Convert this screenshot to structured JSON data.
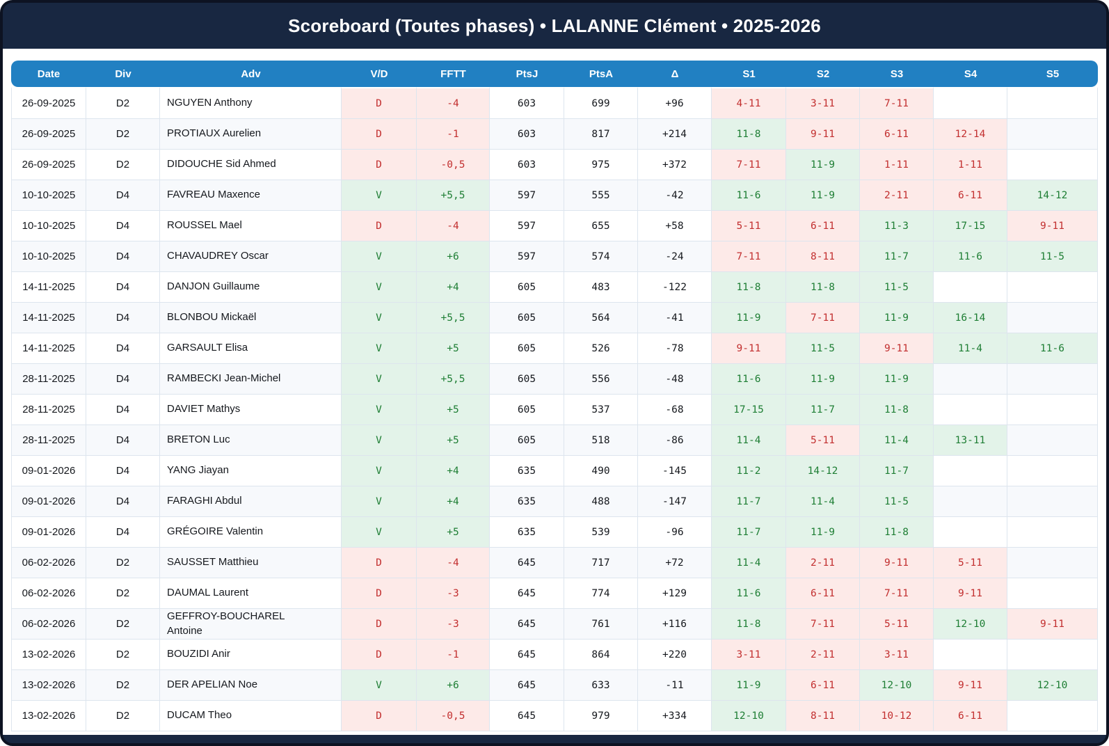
{
  "header": {
    "title": "Scoreboard (Toutes phases) • LALANNE Clément • 2025-2026"
  },
  "colors": {
    "header_navy": "#182741",
    "column_header_blue": "#2180c2",
    "win_text": "#1e7e34",
    "win_bg": "#e3f3e9",
    "loss_text": "#c22f2f",
    "loss_bg": "#fdeae8"
  },
  "table": {
    "columns": [
      "Date",
      "Div",
      "Adv",
      "V/D",
      "FFTT",
      "PtsJ",
      "PtsA",
      "Δ",
      "S1",
      "S2",
      "S3",
      "S4",
      "S5"
    ],
    "rows": [
      {
        "date": "26-09-2025",
        "div": "D2",
        "adv": "NGUYEN Anthony",
        "vd": "D",
        "result": "loss",
        "fftt": "-4",
        "ptsj": "603",
        "ptsa": "699",
        "delta": "+96",
        "sets": [
          {
            "score": "4-11",
            "result": "loss"
          },
          {
            "score": "3-11",
            "result": "loss"
          },
          {
            "score": "7-11",
            "result": "loss"
          },
          {
            "score": "",
            "result": ""
          },
          {
            "score": "",
            "result": ""
          }
        ]
      },
      {
        "date": "26-09-2025",
        "div": "D2",
        "adv": "PROTIAUX Aurelien",
        "vd": "D",
        "result": "loss",
        "fftt": "-1",
        "ptsj": "603",
        "ptsa": "817",
        "delta": "+214",
        "sets": [
          {
            "score": "11-8",
            "result": "win"
          },
          {
            "score": "9-11",
            "result": "loss"
          },
          {
            "score": "6-11",
            "result": "loss"
          },
          {
            "score": "12-14",
            "result": "loss"
          },
          {
            "score": "",
            "result": ""
          }
        ]
      },
      {
        "date": "26-09-2025",
        "div": "D2",
        "adv": "DIDOUCHE Sid Ahmed",
        "vd": "D",
        "result": "loss",
        "fftt": "-0,5",
        "ptsj": "603",
        "ptsa": "975",
        "delta": "+372",
        "sets": [
          {
            "score": "7-11",
            "result": "loss"
          },
          {
            "score": "11-9",
            "result": "win"
          },
          {
            "score": "1-11",
            "result": "loss"
          },
          {
            "score": "1-11",
            "result": "loss"
          },
          {
            "score": "",
            "result": ""
          }
        ]
      },
      {
        "date": "10-10-2025",
        "div": "D4",
        "adv": "FAVREAU Maxence",
        "vd": "V",
        "result": "win",
        "fftt": "+5,5",
        "ptsj": "597",
        "ptsa": "555",
        "delta": "-42",
        "sets": [
          {
            "score": "11-6",
            "result": "win"
          },
          {
            "score": "11-9",
            "result": "win"
          },
          {
            "score": "2-11",
            "result": "loss"
          },
          {
            "score": "6-11",
            "result": "loss"
          },
          {
            "score": "14-12",
            "result": "win"
          }
        ]
      },
      {
        "date": "10-10-2025",
        "div": "D4",
        "adv": "ROUSSEL Mael",
        "vd": "D",
        "result": "loss",
        "fftt": "-4",
        "ptsj": "597",
        "ptsa": "655",
        "delta": "+58",
        "sets": [
          {
            "score": "5-11",
            "result": "loss"
          },
          {
            "score": "6-11",
            "result": "loss"
          },
          {
            "score": "11-3",
            "result": "win"
          },
          {
            "score": "17-15",
            "result": "win"
          },
          {
            "score": "9-11",
            "result": "loss"
          }
        ]
      },
      {
        "date": "10-10-2025",
        "div": "D4",
        "adv": "CHAVAUDREY Oscar",
        "vd": "V",
        "result": "win",
        "fftt": "+6",
        "ptsj": "597",
        "ptsa": "574",
        "delta": "-24",
        "sets": [
          {
            "score": "7-11",
            "result": "loss"
          },
          {
            "score": "8-11",
            "result": "loss"
          },
          {
            "score": "11-7",
            "result": "win"
          },
          {
            "score": "11-6",
            "result": "win"
          },
          {
            "score": "11-5",
            "result": "win"
          }
        ]
      },
      {
        "date": "14-11-2025",
        "div": "D4",
        "adv": "DANJON Guillaume",
        "vd": "V",
        "result": "win",
        "fftt": "+4",
        "ptsj": "605",
        "ptsa": "483",
        "delta": "-122",
        "sets": [
          {
            "score": "11-8",
            "result": "win"
          },
          {
            "score": "11-8",
            "result": "win"
          },
          {
            "score": "11-5",
            "result": "win"
          },
          {
            "score": "",
            "result": ""
          },
          {
            "score": "",
            "result": ""
          }
        ]
      },
      {
        "date": "14-11-2025",
        "div": "D4",
        "adv": "BLONBOU Mickaël",
        "vd": "V",
        "result": "win",
        "fftt": "+5,5",
        "ptsj": "605",
        "ptsa": "564",
        "delta": "-41",
        "sets": [
          {
            "score": "11-9",
            "result": "win"
          },
          {
            "score": "7-11",
            "result": "loss"
          },
          {
            "score": "11-9",
            "result": "win"
          },
          {
            "score": "16-14",
            "result": "win"
          },
          {
            "score": "",
            "result": ""
          }
        ]
      },
      {
        "date": "14-11-2025",
        "div": "D4",
        "adv": "GARSAULT Elisa",
        "vd": "V",
        "result": "win",
        "fftt": "+5",
        "ptsj": "605",
        "ptsa": "526",
        "delta": "-78",
        "sets": [
          {
            "score": "9-11",
            "result": "loss"
          },
          {
            "score": "11-5",
            "result": "win"
          },
          {
            "score": "9-11",
            "result": "loss"
          },
          {
            "score": "11-4",
            "result": "win"
          },
          {
            "score": "11-6",
            "result": "win"
          }
        ]
      },
      {
        "date": "28-11-2025",
        "div": "D4",
        "adv": "RAMBECKI Jean-Michel",
        "vd": "V",
        "result": "win",
        "fftt": "+5,5",
        "ptsj": "605",
        "ptsa": "556",
        "delta": "-48",
        "sets": [
          {
            "score": "11-6",
            "result": "win"
          },
          {
            "score": "11-9",
            "result": "win"
          },
          {
            "score": "11-9",
            "result": "win"
          },
          {
            "score": "",
            "result": ""
          },
          {
            "score": "",
            "result": ""
          }
        ]
      },
      {
        "date": "28-11-2025",
        "div": "D4",
        "adv": "DAVIET Mathys",
        "vd": "V",
        "result": "win",
        "fftt": "+5",
        "ptsj": "605",
        "ptsa": "537",
        "delta": "-68",
        "sets": [
          {
            "score": "17-15",
            "result": "win"
          },
          {
            "score": "11-7",
            "result": "win"
          },
          {
            "score": "11-8",
            "result": "win"
          },
          {
            "score": "",
            "result": ""
          },
          {
            "score": "",
            "result": ""
          }
        ]
      },
      {
        "date": "28-11-2025",
        "div": "D4",
        "adv": "BRETON Luc",
        "vd": "V",
        "result": "win",
        "fftt": "+5",
        "ptsj": "605",
        "ptsa": "518",
        "delta": "-86",
        "sets": [
          {
            "score": "11-4",
            "result": "win"
          },
          {
            "score": "5-11",
            "result": "loss"
          },
          {
            "score": "11-4",
            "result": "win"
          },
          {
            "score": "13-11",
            "result": "win"
          },
          {
            "score": "",
            "result": ""
          }
        ]
      },
      {
        "date": "09-01-2026",
        "div": "D4",
        "adv": "YANG Jiayan",
        "vd": "V",
        "result": "win",
        "fftt": "+4",
        "ptsj": "635",
        "ptsa": "490",
        "delta": "-145",
        "sets": [
          {
            "score": "11-2",
            "result": "win"
          },
          {
            "score": "14-12",
            "result": "win"
          },
          {
            "score": "11-7",
            "result": "win"
          },
          {
            "score": "",
            "result": ""
          },
          {
            "score": "",
            "result": ""
          }
        ]
      },
      {
        "date": "09-01-2026",
        "div": "D4",
        "adv": "FARAGHI Abdul",
        "vd": "V",
        "result": "win",
        "fftt": "+4",
        "ptsj": "635",
        "ptsa": "488",
        "delta": "-147",
        "sets": [
          {
            "score": "11-7",
            "result": "win"
          },
          {
            "score": "11-4",
            "result": "win"
          },
          {
            "score": "11-5",
            "result": "win"
          },
          {
            "score": "",
            "result": ""
          },
          {
            "score": "",
            "result": ""
          }
        ]
      },
      {
        "date": "09-01-2026",
        "div": "D4",
        "adv": "GRÉGOIRE Valentin",
        "vd": "V",
        "result": "win",
        "fftt": "+5",
        "ptsj": "635",
        "ptsa": "539",
        "delta": "-96",
        "sets": [
          {
            "score": "11-7",
            "result": "win"
          },
          {
            "score": "11-9",
            "result": "win"
          },
          {
            "score": "11-8",
            "result": "win"
          },
          {
            "score": "",
            "result": ""
          },
          {
            "score": "",
            "result": ""
          }
        ]
      },
      {
        "date": "06-02-2026",
        "div": "D2",
        "adv": "SAUSSET Matthieu",
        "vd": "D",
        "result": "loss",
        "fftt": "-4",
        "ptsj": "645",
        "ptsa": "717",
        "delta": "+72",
        "sets": [
          {
            "score": "11-4",
            "result": "win"
          },
          {
            "score": "2-11",
            "result": "loss"
          },
          {
            "score": "9-11",
            "result": "loss"
          },
          {
            "score": "5-11",
            "result": "loss"
          },
          {
            "score": "",
            "result": ""
          }
        ]
      },
      {
        "date": "06-02-2026",
        "div": "D2",
        "adv": "DAUMAL Laurent",
        "vd": "D",
        "result": "loss",
        "fftt": "-3",
        "ptsj": "645",
        "ptsa": "774",
        "delta": "+129",
        "sets": [
          {
            "score": "11-6",
            "result": "win"
          },
          {
            "score": "6-11",
            "result": "loss"
          },
          {
            "score": "7-11",
            "result": "loss"
          },
          {
            "score": "9-11",
            "result": "loss"
          },
          {
            "score": "",
            "result": ""
          }
        ]
      },
      {
        "date": "06-02-2026",
        "div": "D2",
        "adv": "GEFFROY-BOUCHAREL Antoine",
        "vd": "D",
        "result": "loss",
        "fftt": "-3",
        "ptsj": "645",
        "ptsa": "761",
        "delta": "+116",
        "sets": [
          {
            "score": "11-8",
            "result": "win"
          },
          {
            "score": "7-11",
            "result": "loss"
          },
          {
            "score": "5-11",
            "result": "loss"
          },
          {
            "score": "12-10",
            "result": "win"
          },
          {
            "score": "9-11",
            "result": "loss"
          }
        ]
      },
      {
        "date": "13-02-2026",
        "div": "D2",
        "adv": "BOUZIDI Anir",
        "vd": "D",
        "result": "loss",
        "fftt": "-1",
        "ptsj": "645",
        "ptsa": "864",
        "delta": "+220",
        "sets": [
          {
            "score": "3-11",
            "result": "loss"
          },
          {
            "score": "2-11",
            "result": "loss"
          },
          {
            "score": "3-11",
            "result": "loss"
          },
          {
            "score": "",
            "result": ""
          },
          {
            "score": "",
            "result": ""
          }
        ]
      },
      {
        "date": "13-02-2026",
        "div": "D2",
        "adv": "DER APELIAN Noe",
        "vd": "V",
        "result": "win",
        "fftt": "+6",
        "ptsj": "645",
        "ptsa": "633",
        "delta": "-11",
        "sets": [
          {
            "score": "11-9",
            "result": "win"
          },
          {
            "score": "6-11",
            "result": "loss"
          },
          {
            "score": "12-10",
            "result": "win"
          },
          {
            "score": "9-11",
            "result": "loss"
          },
          {
            "score": "12-10",
            "result": "win"
          }
        ]
      },
      {
        "date": "13-02-2026",
        "div": "D2",
        "adv": "DUCAM Theo",
        "vd": "D",
        "result": "loss",
        "fftt": "-0,5",
        "ptsj": "645",
        "ptsa": "979",
        "delta": "+334",
        "sets": [
          {
            "score": "12-10",
            "result": "win"
          },
          {
            "score": "8-11",
            "result": "loss"
          },
          {
            "score": "10-12",
            "result": "loss"
          },
          {
            "score": "6-11",
            "result": "loss"
          },
          {
            "score": "",
            "result": ""
          }
        ]
      }
    ]
  }
}
